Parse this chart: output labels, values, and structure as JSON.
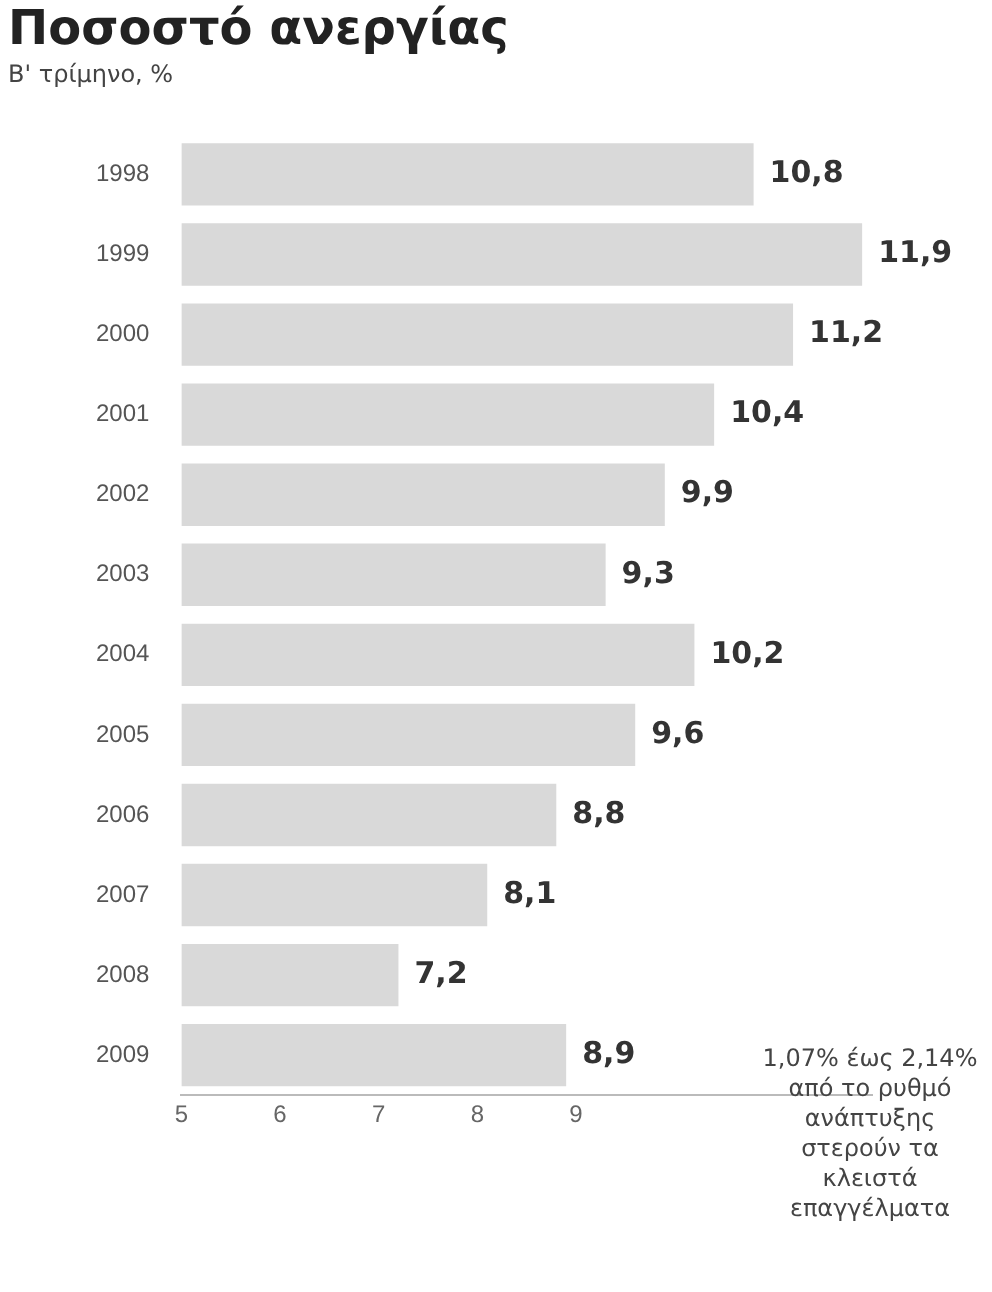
{
  "chart_data": {
    "type": "bar",
    "orientation": "horizontal",
    "title": "Ποσοστό ανεργίας",
    "subtitle": "Β' τρίμηνο, %",
    "categories": [
      "1998",
      "1999",
      "2000",
      "2001",
      "2002",
      "2003",
      "2004",
      "2005",
      "2006",
      "2007",
      "2008",
      "2009"
    ],
    "values": [
      10.8,
      11.9,
      11.2,
      10.4,
      9.9,
      9.3,
      10.2,
      9.6,
      8.8,
      8.1,
      7.2,
      8.9
    ],
    "value_labels": [
      "10,8",
      "11,9",
      "11,2",
      "10,4",
      "9,9",
      "9,3",
      "10,2",
      "9,6",
      "8,8",
      "8,1",
      "7,2",
      "8,9"
    ],
    "color": "#d9d9d9",
    "xlim": [
      5,
      12
    ],
    "xticks": [
      5,
      6,
      7,
      8,
      9
    ],
    "grid": false,
    "annotations": [
      "1,07% έως 2,14% από το ρυθμό ανάπτυξης στερούν τα κλειστά επαγγέλματα"
    ]
  }
}
